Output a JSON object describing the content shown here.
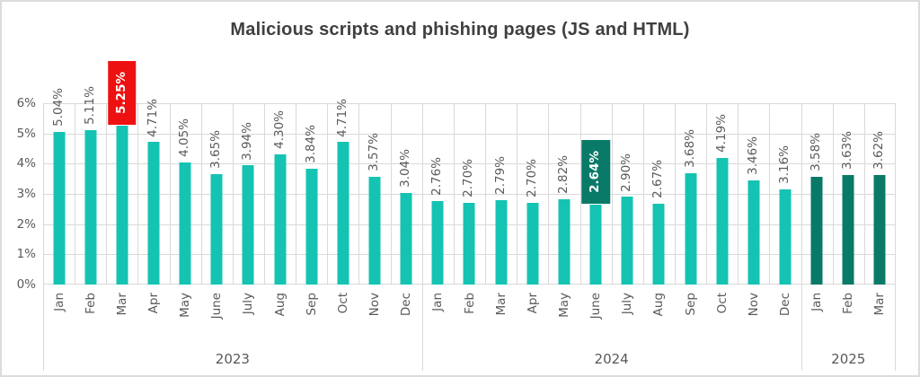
{
  "chart_data": {
    "type": "bar",
    "title": "Malicious scripts and phishing pages (JS and HTML)",
    "xlabel": "",
    "ylabel": "",
    "unit": "%",
    "ylim": [
      0,
      6
    ],
    "y_ticks": [
      "0%",
      "1%",
      "2%",
      "3%",
      "4%",
      "5%",
      "6%"
    ],
    "grid": "horizontal every 1% and vertical per month column; year separators under axis",
    "legend": "none",
    "data_labels": "every bar labeled with value, rotated 90 degrees reading bottom-to-top",
    "groups": [
      {
        "year": "2023",
        "categories": [
          "Jan",
          "Feb",
          "Mar",
          "Apr",
          "May",
          "June",
          "July",
          "Aug",
          "Sep",
          "Oct",
          "Nov",
          "Dec"
        ],
        "values": [
          5.04,
          5.11,
          5.25,
          4.71,
          4.05,
          3.65,
          3.94,
          4.3,
          3.84,
          4.71,
          3.57,
          3.04
        ]
      },
      {
        "year": "2024",
        "categories": [
          "Jan",
          "Feb",
          "Mar",
          "Apr",
          "May",
          "June",
          "July",
          "Aug",
          "Sep",
          "Oct",
          "Nov",
          "Dec"
        ],
        "values": [
          2.76,
          2.7,
          2.79,
          2.7,
          2.82,
          2.64,
          2.9,
          2.67,
          3.68,
          4.19,
          3.46,
          3.16
        ]
      },
      {
        "year": "2025",
        "categories": [
          "Jan",
          "Feb",
          "Mar"
        ],
        "values": [
          3.58,
          3.63,
          3.62
        ]
      }
    ],
    "highlights": [
      {
        "year": "2023",
        "month": "Mar",
        "label": "5.25%",
        "style": "max",
        "box_color": "#EE1111",
        "text_color": "#FFFFFF"
      },
      {
        "year": "2024",
        "month": "June",
        "label": "2.64%",
        "style": "min",
        "box_color": "#0A7A68",
        "text_color": "#FFFFFF"
      }
    ],
    "colors": {
      "bar_2023": "#15C3B3",
      "bar_2024": "#15C3B3",
      "bar_2025": "#0A7A68",
      "highlight_max": "#EE1111",
      "highlight_min": "#0A7A68",
      "gridline": "#D9D9D9",
      "axis_text": "#595959",
      "title_text": "#3F3F3F"
    }
  }
}
